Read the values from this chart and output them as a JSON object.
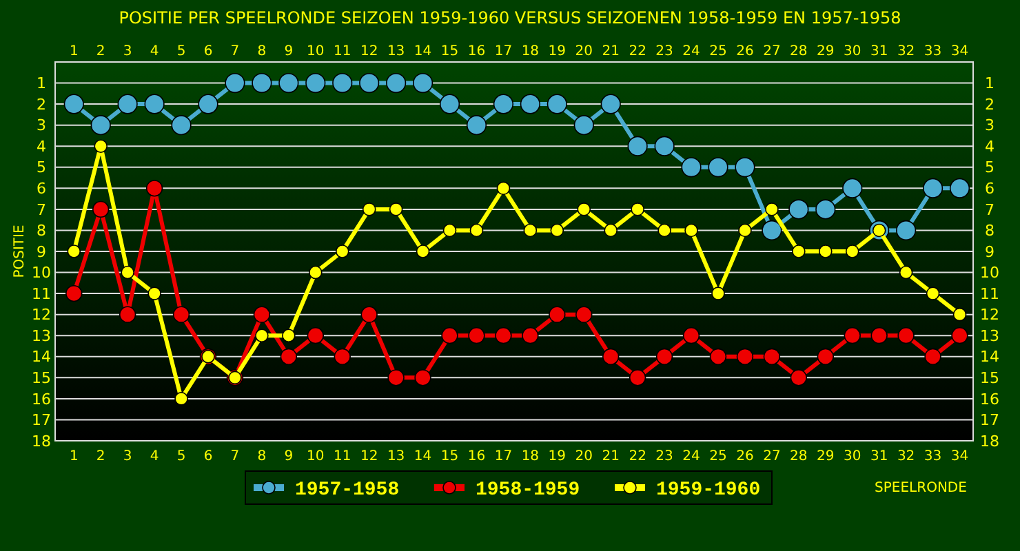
{
  "chart_data": {
    "type": "line",
    "title": "POSITIE PER SPEELRONDE SEIZOEN 1959-1960 VERSUS SEIZOENEN 1958-1959 EN 1957-1958",
    "xlabel": "SPEELRONDE",
    "ylabel": "POSITIE",
    "x": [
      1,
      2,
      3,
      4,
      5,
      6,
      7,
      8,
      9,
      10,
      11,
      12,
      13,
      14,
      15,
      16,
      17,
      18,
      19,
      20,
      21,
      22,
      23,
      24,
      25,
      26,
      27,
      28,
      29,
      30,
      31,
      32,
      33,
      34
    ],
    "series": [
      {
        "name": "1957-1958",
        "color": "#4bacd0",
        "values": [
          2,
          3,
          2,
          2,
          3,
          2,
          1,
          1,
          1,
          1,
          1,
          1,
          1,
          1,
          2,
          3,
          2,
          2,
          2,
          3,
          2,
          4,
          4,
          5,
          5,
          5,
          8,
          7,
          7,
          6,
          8,
          8,
          6,
          6
        ]
      },
      {
        "name": "1958-1959",
        "color": "#ee0000",
        "values": [
          11,
          7,
          12,
          6,
          12,
          14,
          15,
          12,
          14,
          13,
          14,
          12,
          15,
          15,
          13,
          13,
          13,
          13,
          12,
          12,
          14,
          15,
          14,
          13,
          14,
          14,
          14,
          15,
          14,
          13,
          13,
          13,
          14,
          13
        ]
      },
      {
        "name": "1959-1960",
        "color": "#ffff00",
        "values": [
          9,
          4,
          10,
          11,
          16,
          14,
          15,
          13,
          13,
          10,
          9,
          7,
          7,
          9,
          8,
          8,
          6,
          8,
          8,
          7,
          8,
          7,
          8,
          8,
          11,
          8,
          7,
          9,
          9,
          9,
          8,
          10,
          11,
          12
        ]
      }
    ],
    "xlim": [
      0.3,
      34.5
    ],
    "xticks": [
      1,
      2,
      3,
      4,
      5,
      6,
      7,
      8,
      9,
      10,
      11,
      12,
      13,
      14,
      15,
      16,
      17,
      18,
      19,
      20,
      21,
      22,
      23,
      24,
      25,
      26,
      27,
      28,
      29,
      30,
      31,
      32,
      33,
      34
    ],
    "x2lim": [
      0.3,
      34.5
    ],
    "x2ticks": [
      1,
      2,
      3,
      4,
      5,
      6,
      7,
      8,
      9,
      10,
      11,
      12,
      13,
      14,
      15,
      16,
      17,
      18,
      19,
      20,
      21,
      22,
      23,
      24,
      25,
      26,
      27,
      28,
      29,
      30,
      31,
      32,
      33,
      34
    ],
    "ylim": [
      18,
      0
    ],
    "yticks": [
      1,
      2,
      3,
      4,
      5,
      6,
      7,
      8,
      9,
      10,
      11,
      12,
      13,
      14,
      15,
      16,
      17,
      18
    ],
    "y2lim": [
      18,
      0
    ],
    "y2ticks": [
      1,
      2,
      3,
      4,
      5,
      6,
      7,
      8,
      9,
      10,
      11,
      12,
      13,
      14,
      15,
      16,
      17,
      18
    ],
    "grid": "y",
    "legend": "bottom",
    "marker": "circle",
    "line_style": "solid"
  }
}
